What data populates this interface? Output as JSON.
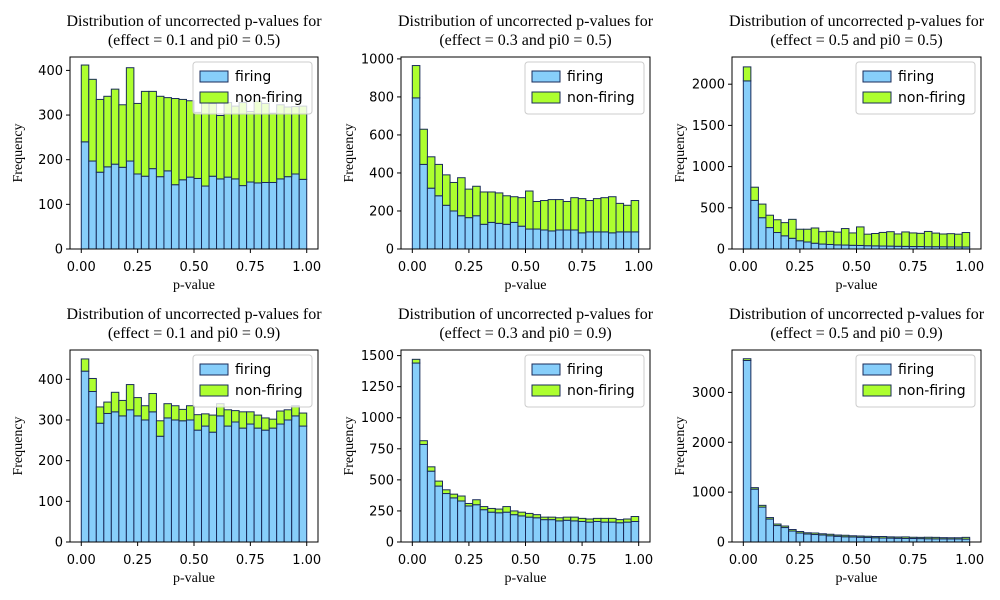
{
  "series_colors": {
    "firing": "#87cefa",
    "non-firing": "#adff2f",
    "edge": "#1a2b5a"
  },
  "chart_data": [
    {
      "type": "bar",
      "title": [
        "Distribution of uncorrected p-values for",
        "(effect = 0.1 and pi0 = 0.5)"
      ],
      "xlabel": "p-value",
      "ylabel": "Frequency",
      "xlim": [
        -0.05,
        1.05
      ],
      "ylim": [
        0,
        430
      ],
      "xticks": [
        0.0,
        0.25,
        0.5,
        0.75,
        1.0
      ],
      "xtick_labels": [
        "0.00",
        "0.25",
        "0.50",
        "0.75",
        "1.00"
      ],
      "yticks": [
        0,
        100,
        200,
        300,
        400
      ],
      "ytick_labels": [
        "0",
        "100",
        "200",
        "300",
        "400"
      ],
      "legend": "upper right",
      "bins": 30,
      "series": [
        {
          "name": "firing",
          "values": [
            240,
            197,
            172,
            184,
            190,
            183,
            197,
            168,
            163,
            180,
            162,
            175,
            144,
            155,
            161,
            158,
            141,
            163,
            157,
            161,
            157,
            142,
            150,
            148,
            149,
            149,
            157,
            162,
            168,
            156
          ]
        },
        {
          "name": "non-firing",
          "values": [
            172,
            183,
            163,
            158,
            168,
            140,
            209,
            158,
            190,
            173,
            180,
            164,
            193,
            180,
            171,
            148,
            187,
            163,
            142,
            167,
            163,
            186,
            158,
            183,
            177,
            155,
            166,
            156,
            151,
            164
          ]
        }
      ]
    },
    {
      "type": "bar",
      "title": [
        "Distribution of uncorrected p-values for",
        "(effect = 0.3 and pi0 = 0.5)"
      ],
      "xlabel": "p-value",
      "ylabel": "Frequency",
      "xlim": [
        -0.05,
        1.05
      ],
      "ylim": [
        0,
        1010
      ],
      "xticks": [
        0.0,
        0.25,
        0.5,
        0.75,
        1.0
      ],
      "xtick_labels": [
        "0.00",
        "0.25",
        "0.50",
        "0.75",
        "1.00"
      ],
      "yticks": [
        0,
        200,
        400,
        600,
        800,
        1000
      ],
      "ytick_labels": [
        "0",
        "200",
        "400",
        "600",
        "800",
        "1000"
      ],
      "legend": "upper right",
      "bins": 30,
      "series": [
        {
          "name": "firing",
          "values": [
            795,
            445,
            320,
            280,
            230,
            200,
            175,
            165,
            175,
            130,
            140,
            135,
            130,
            140,
            120,
            105,
            105,
            100,
            95,
            100,
            100,
            100,
            85,
            90,
            90,
            90,
            85,
            90,
            90,
            90
          ]
        },
        {
          "name": "non-firing",
          "values": [
            170,
            185,
            165,
            165,
            160,
            150,
            200,
            150,
            155,
            170,
            160,
            160,
            150,
            135,
            150,
            200,
            145,
            155,
            165,
            160,
            150,
            170,
            180,
            165,
            175,
            180,
            190,
            150,
            140,
            165
          ]
        }
      ]
    },
    {
      "type": "bar",
      "title": [
        "Distribution of uncorrected p-values for",
        "(effect = 0.5 and pi0 = 0.5)"
      ],
      "xlabel": "p-value",
      "ylabel": "Frequency",
      "xlim": [
        -0.05,
        1.05
      ],
      "ylim": [
        0,
        2330
      ],
      "xticks": [
        0.0,
        0.25,
        0.5,
        0.75,
        1.0
      ],
      "xtick_labels": [
        "0.00",
        "0.25",
        "0.50",
        "0.75",
        "1.00"
      ],
      "yticks": [
        0,
        500,
        1000,
        1500,
        2000
      ],
      "ytick_labels": [
        "0",
        "500",
        "1000",
        "1500",
        "2000"
      ],
      "legend": "upper right",
      "bins": 30,
      "series": [
        {
          "name": "firing",
          "values": [
            2040,
            590,
            380,
            260,
            200,
            160,
            130,
            100,
            85,
            70,
            60,
            55,
            50,
            48,
            45,
            43,
            40,
            38,
            36,
            35,
            33,
            32,
            30,
            30,
            28,
            28,
            27,
            26,
            25,
            25
          ]
        },
        {
          "name": "non-firing",
          "values": [
            170,
            160,
            165,
            150,
            155,
            160,
            230,
            140,
            155,
            185,
            150,
            160,
            155,
            200,
            150,
            225,
            140,
            150,
            165,
            175,
            150,
            175,
            165,
            160,
            185,
            165,
            155,
            160,
            155,
            175
          ]
        }
      ]
    },
    {
      "type": "bar",
      "title": [
        "Distribution of uncorrected p-values for",
        "(effect = 0.1 and pi0 = 0.9)"
      ],
      "xlabel": "p-value",
      "ylabel": "Frequency",
      "xlim": [
        -0.05,
        1.05
      ],
      "ylim": [
        0,
        472
      ],
      "xticks": [
        0.0,
        0.25,
        0.5,
        0.75,
        1.0
      ],
      "xtick_labels": [
        "0.00",
        "0.25",
        "0.50",
        "0.75",
        "1.00"
      ],
      "yticks": [
        0,
        100,
        200,
        300,
        400
      ],
      "ytick_labels": [
        "0",
        "100",
        "200",
        "300",
        "400"
      ],
      "legend": "upper right",
      "bins": 30,
      "series": [
        {
          "name": "firing",
          "values": [
            420,
            370,
            292,
            316,
            320,
            310,
            325,
            310,
            300,
            320,
            260,
            305,
            300,
            298,
            300,
            275,
            285,
            270,
            310,
            285,
            295,
            280,
            290,
            280,
            275,
            280,
            290,
            300,
            310,
            285
          ]
        },
        {
          "name": "non-firing",
          "values": [
            30,
            32,
            40,
            28,
            48,
            38,
            62,
            45,
            35,
            45,
            38,
            35,
            35,
            28,
            35,
            38,
            30,
            42,
            30,
            40,
            28,
            40,
            30,
            32,
            30,
            22,
            32,
            25,
            25,
            32
          ]
        }
      ]
    },
    {
      "type": "bar",
      "title": [
        "Distribution of uncorrected p-values for",
        "(effect = 0.3 and pi0 = 0.9)"
      ],
      "xlabel": "p-value",
      "ylabel": "Frequency",
      "xlim": [
        -0.05,
        1.05
      ],
      "ylim": [
        0,
        1545
      ],
      "xticks": [
        0.0,
        0.25,
        0.5,
        0.75,
        1.0
      ],
      "xtick_labels": [
        "0.00",
        "0.25",
        "0.50",
        "0.75",
        "1.00"
      ],
      "yticks": [
        0,
        250,
        500,
        750,
        1000,
        1250,
        1500
      ],
      "ytick_labels": [
        "0",
        "250",
        "500",
        "750",
        "1000",
        "1250",
        "1500"
      ],
      "legend": "upper right",
      "bins": 30,
      "series": [
        {
          "name": "firing",
          "values": [
            1440,
            785,
            570,
            450,
            390,
            355,
            330,
            290,
            300,
            260,
            240,
            235,
            240,
            220,
            210,
            200,
            195,
            180,
            180,
            170,
            175,
            170,
            165,
            160,
            165,
            160,
            160,
            155,
            160,
            165
          ]
        },
        {
          "name": "non-firing",
          "values": [
            30,
            30,
            35,
            40,
            30,
            30,
            40,
            20,
            40,
            25,
            30,
            30,
            45,
            30,
            30,
            30,
            25,
            20,
            20,
            25,
            25,
            30,
            25,
            25,
            25,
            30,
            30,
            25,
            25,
            40
          ]
        }
      ]
    },
    {
      "type": "bar",
      "title": [
        "Distribution of uncorrected p-values for",
        "(effect = 0.5 and pi0 = 0.9)"
      ],
      "xlabel": "p-value",
      "ylabel": "Frequency",
      "xlim": [
        -0.05,
        1.05
      ],
      "ylim": [
        0,
        3850
      ],
      "xticks": [
        0.0,
        0.25,
        0.5,
        0.75,
        1.0
      ],
      "xtick_labels": [
        "0.00",
        "0.25",
        "0.50",
        "0.75",
        "1.00"
      ],
      "yticks": [
        0,
        1000,
        2000,
        3000
      ],
      "ytick_labels": [
        "0",
        "1000",
        "2000",
        "3000"
      ],
      "legend": "upper right",
      "bins": 30,
      "series": [
        {
          "name": "firing",
          "values": [
            3640,
            1060,
            700,
            460,
            330,
            290,
            220,
            180,
            160,
            150,
            140,
            125,
            115,
            105,
            100,
            95,
            90,
            85,
            80,
            78,
            75,
            72,
            70,
            68,
            65,
            63,
            62,
            60,
            60,
            58
          ]
        },
        {
          "name": "non-firing",
          "values": [
            35,
            30,
            35,
            30,
            30,
            30,
            30,
            30,
            25,
            30,
            25,
            30,
            25,
            30,
            25,
            25,
            25,
            25,
            30,
            25,
            25,
            30,
            25,
            25,
            30,
            30,
            25,
            25,
            25,
            35
          ]
        }
      ]
    }
  ]
}
